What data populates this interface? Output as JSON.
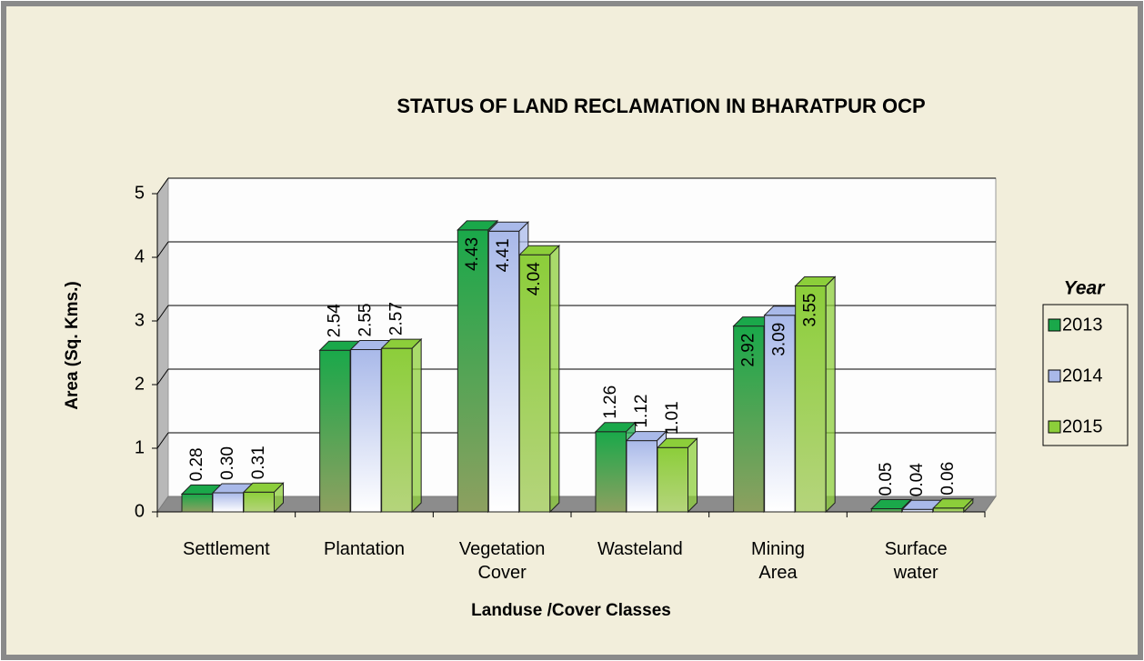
{
  "chart_data": {
    "type": "bar3d",
    "title": "STATUS OF LAND RECLAMATION   IN BHARATPUR OCP",
    "x_label": "Landuse /Cover Classes",
    "y_label": "Area (Sq. Kms.)",
    "legend_title": "Year",
    "legend": "right",
    "categories": [
      "Settlement",
      "Plantation",
      "Vegetation Cover",
      "Wasteland",
      "Mining Area",
      "Surface water"
    ],
    "series": [
      {
        "name": "2013",
        "color": "#1aa84a",
        "values": [
          0.28,
          2.54,
          4.43,
          1.26,
          2.92,
          0.05
        ],
        "value_labels": [
          "0.28",
          "2.54",
          "4.43",
          "1.26",
          "2.92",
          "0.05"
        ]
      },
      {
        "name": "2014",
        "color": "#a9b9e9",
        "values": [
          0.3,
          2.55,
          4.41,
          1.12,
          3.09,
          0.04
        ],
        "value_labels": [
          "0.30",
          "2.55",
          "4.41",
          "1.12",
          "3.09",
          "0.04"
        ]
      },
      {
        "name": "2015",
        "color": "#8cce3a",
        "values": [
          0.31,
          2.57,
          4.04,
          1.01,
          3.55,
          0.06
        ],
        "value_labels": [
          "0.31",
          "2.57",
          "4.04",
          "1.01",
          "3.55",
          "0.06"
        ]
      }
    ],
    "ylim": [
      0,
      5
    ],
    "yticks": [
      0,
      1,
      2,
      3,
      4,
      5
    ],
    "grid": true
  }
}
